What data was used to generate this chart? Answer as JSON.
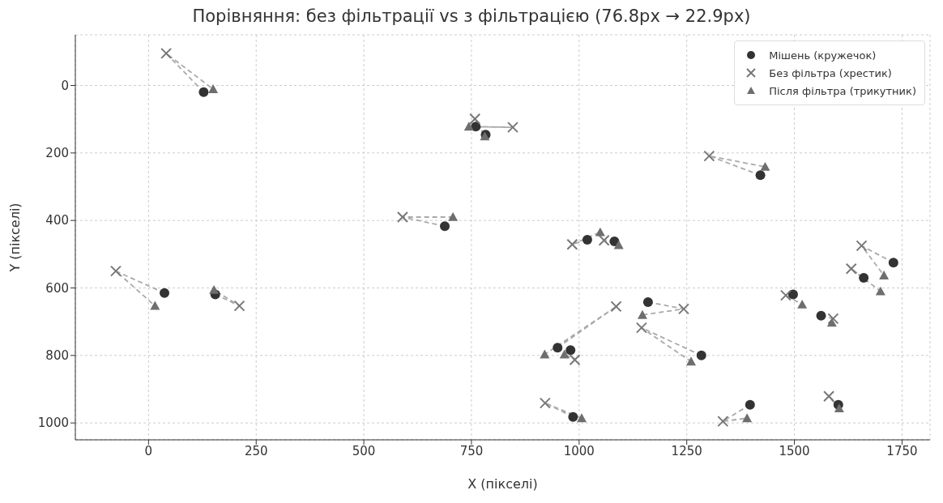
{
  "chart_data": {
    "type": "scatter",
    "title": "Порівняння: без фільтрації vs з фільтрацією (76.8px → 22.9px)",
    "xlabel": "X (пікселі)",
    "ylabel": "Y (пікселі)",
    "xlim": [
      -170,
      1815
    ],
    "xticks": [
      0,
      250,
      500,
      750,
      1000,
      1250,
      1500,
      1750
    ],
    "ylim": [
      1050,
      -150
    ],
    "yticks": [
      0,
      200,
      400,
      600,
      800,
      1000
    ],
    "grid": true,
    "legend": "top right",
    "series": [
      {
        "type": "line",
        "color": "#aaaaaa",
        "line_style": "dashed",
        "marker": "none",
        "x": [
          128,
          41,
          150,
          null,
          760,
          846,
          744,
          null,
          783,
          758,
          781,
          null,
          1421,
          1302,
          1432,
          null,
          688,
          590,
          707,
          null,
          1019,
          984,
          1049,
          null,
          1082,
          1058,
          1092,
          null,
          37,
          -76,
          15,
          null,
          155,
          211,
          152,
          null,
          950,
          1086,
          920,
          null,
          980,
          990,
          966,
          null,
          1160,
          1243,
          1147,
          null,
          1284,
          1145,
          1260,
          null,
          986,
          921,
          1006,
          null,
          1730,
          1656,
          1708,
          null,
          1661,
          1632,
          1700,
          null,
          1497,
          1480,
          1518,
          null,
          1562,
          1590,
          1587,
          null,
          1397,
          1334,
          1390,
          null,
          1602,
          1580,
          1604
        ],
        "values": [
          20,
          -95,
          11,
          null,
          122,
          124,
          122,
          null,
          146,
          99,
          151,
          null,
          266,
          209,
          241,
          null,
          417,
          390,
          390,
          null,
          457,
          471,
          435,
          null,
          462,
          459,
          473,
          null,
          615,
          550,
          653,
          null,
          619,
          653,
          606,
          null,
          777,
          655,
          797,
          null,
          784,
          813,
          797,
          null,
          642,
          662,
          680,
          null,
          800,
          718,
          818,
          null,
          982,
          941,
          986,
          null,
          525,
          475,
          563,
          null,
          570,
          543,
          610,
          null,
          619,
          622,
          649,
          null,
          682,
          691,
          703,
          null,
          946,
          995,
          986,
          null,
          946,
          921,
          957
        ]
      },
      {
        "name": "Мішень (кружечок)",
        "color": "#333333",
        "marker": "circle",
        "x": [
          128,
          760,
          783,
          1421,
          688,
          1019,
          1082,
          37,
          155,
          950,
          980,
          1160,
          1284,
          986,
          1730,
          1661,
          1497,
          1562,
          1397,
          1602
        ],
        "values": [
          20,
          122,
          146,
          266,
          417,
          457,
          462,
          615,
          619,
          777,
          784,
          642,
          800,
          982,
          525,
          570,
          619,
          682,
          946,
          946
        ]
      },
      {
        "name": "Без фільтра (хрестик)",
        "color": "#777777",
        "marker": "cross",
        "x": [
          41,
          846,
          758,
          1302,
          590,
          984,
          1058,
          -76,
          211,
          1086,
          990,
          1243,
          1145,
          921,
          1656,
          1632,
          1480,
          1590,
          1334,
          1580
        ],
        "values": [
          -95,
          124,
          99,
          209,
          390,
          471,
          459,
          550,
          653,
          655,
          813,
          662,
          718,
          941,
          475,
          543,
          622,
          691,
          995,
          921
        ]
      },
      {
        "name": "Після фільтра (трикутник)",
        "color": "#6e6e6e",
        "marker": "triangle",
        "x": [
          150,
          744,
          781,
          1432,
          707,
          1049,
          1092,
          15,
          152,
          920,
          966,
          1147,
          1260,
          1006,
          1708,
          1700,
          1518,
          1587,
          1390,
          1604
        ],
        "values": [
          11,
          122,
          151,
          241,
          390,
          435,
          473,
          653,
          606,
          797,
          797,
          680,
          818,
          986,
          563,
          610,
          649,
          703,
          986,
          957
        ]
      }
    ]
  }
}
